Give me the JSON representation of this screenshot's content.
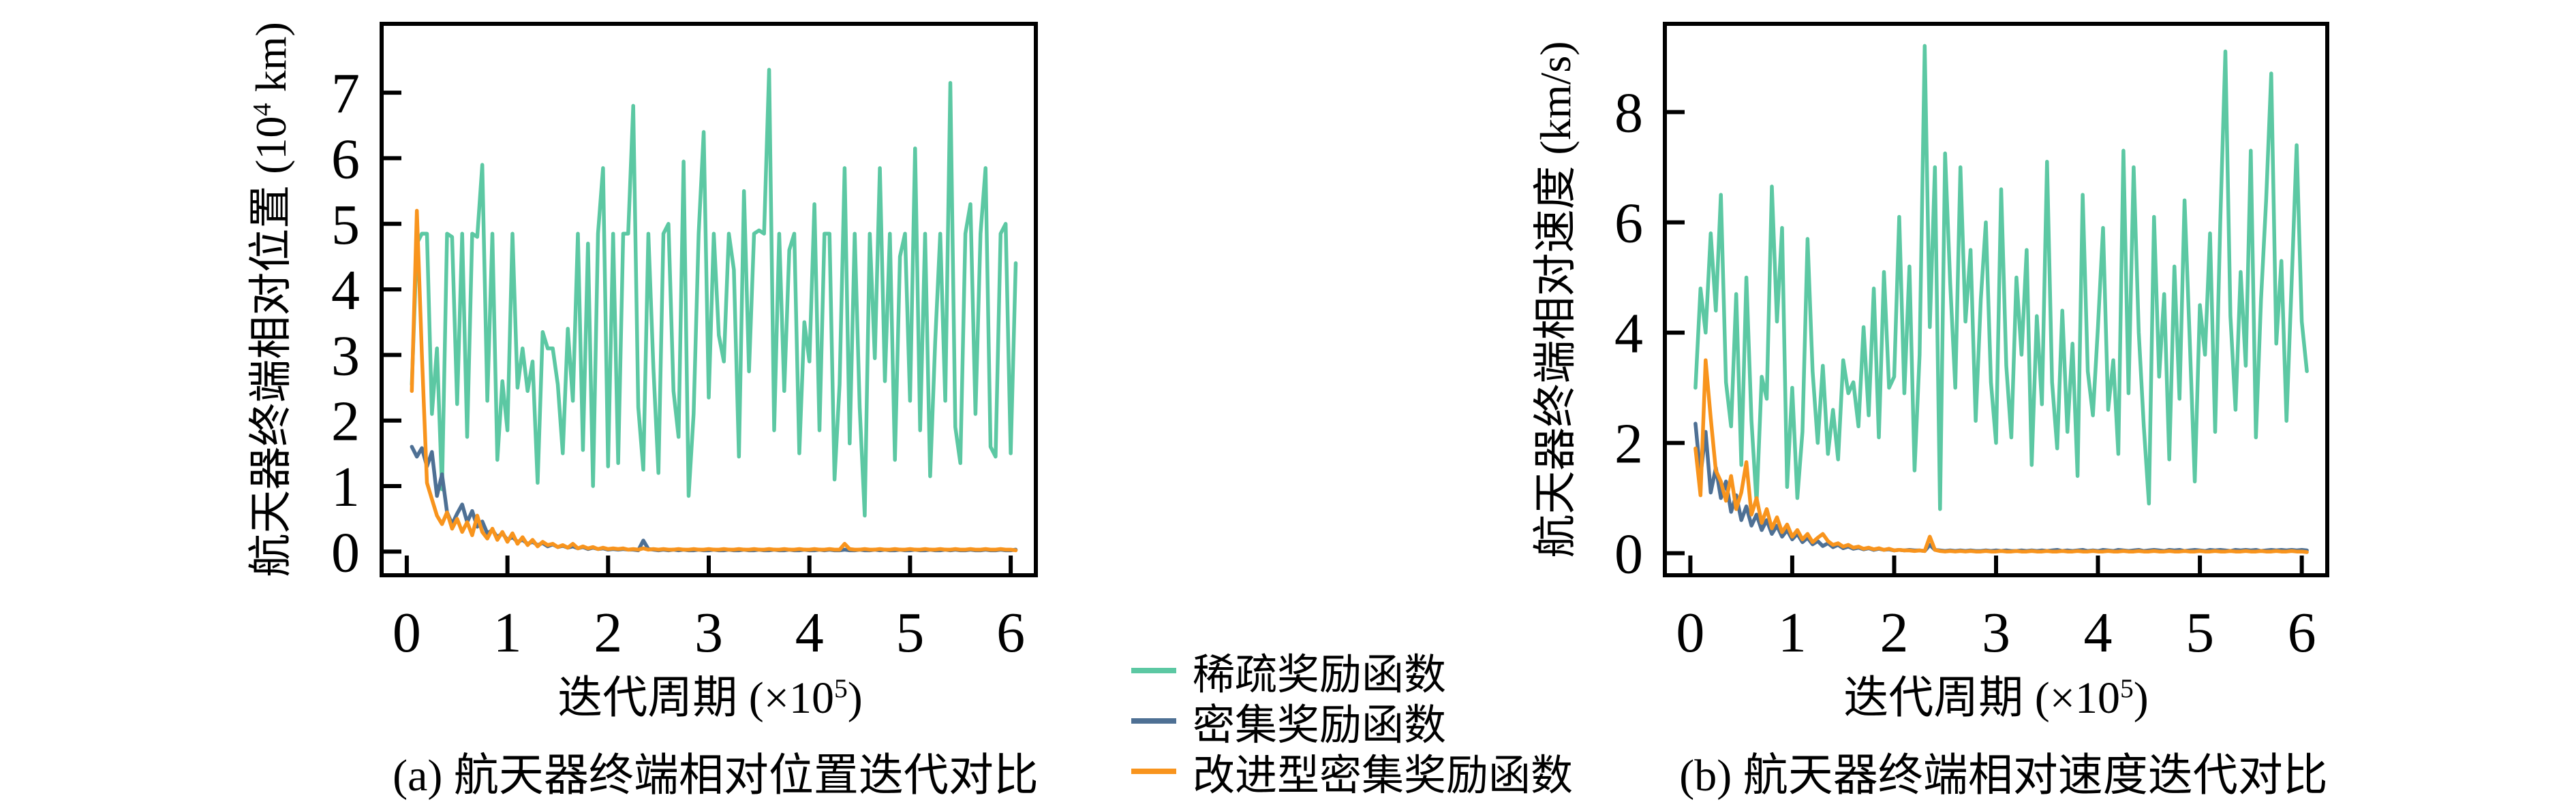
{
  "legend": {
    "items": [
      {
        "key": "sparse",
        "label": "稀疏奖励函数",
        "color": "#5CC8A3"
      },
      {
        "key": "dense",
        "label": "密集奖励函数",
        "color": "#4E7094"
      },
      {
        "key": "improved",
        "label": "改进型密集奖励函数",
        "color": "#F8941D"
      }
    ]
  },
  "axis_color": "#000000",
  "chart_data": [
    {
      "type": "line",
      "caption": "(a) 航天器终端相对位置迭代对比",
      "xlabel": "迭代周期 (×10⁵)",
      "xlabel_base": "迭代周期 (×10",
      "xlabel_sup": "5",
      "xlabel_tail": ")",
      "ylabel": "航天器终端相对位置 (10⁴ km)",
      "ylabel_base": "航天器终端相对位置 (10",
      "ylabel_sup": "4",
      "ylabel_tail": " km)",
      "x_ticks": [
        0,
        1,
        2,
        3,
        4,
        5,
        6
      ],
      "y_ticks": [
        0,
        1,
        2,
        3,
        4,
        5,
        6,
        7
      ],
      "xlim": [
        -0.25,
        6.25
      ],
      "ylim": [
        -0.36,
        8.05
      ],
      "grid": false,
      "legend_position": "figure-bottom-center",
      "x_start": 0.05,
      "x_step": 0.05,
      "series": [
        {
          "key": "sparse",
          "name": "稀疏奖励函数",
          "color": "#5CC8A3",
          "values": [
            2.55,
            4.7,
            4.85,
            4.85,
            2.1,
            3.1,
            0.95,
            4.85,
            4.8,
            2.25,
            4.85,
            1.75,
            4.85,
            4.8,
            5.9,
            2.3,
            4.85,
            1.4,
            2.6,
            1.85,
            4.85,
            2.5,
            3.1,
            2.45,
            2.9,
            1.05,
            3.35,
            3.1,
            3.1,
            2.55,
            1.5,
            3.4,
            2.3,
            4.85,
            1.55,
            4.7,
            1.0,
            4.85,
            5.85,
            1.3,
            4.85,
            1.35,
            4.85,
            4.85,
            6.8,
            2.2,
            1.25,
            4.85,
            2.8,
            1.2,
            4.85,
            5.0,
            2.45,
            1.75,
            5.95,
            0.85,
            2.1,
            4.85,
            6.4,
            2.35,
            4.85,
            3.3,
            2.9,
            4.85,
            4.3,
            1.45,
            5.5,
            2.75,
            4.85,
            4.9,
            4.85,
            7.35,
            1.85,
            4.85,
            2.45,
            4.6,
            4.85,
            1.5,
            3.5,
            2.9,
            5.3,
            1.85,
            4.85,
            4.85,
            1.1,
            2.55,
            5.85,
            1.65,
            4.85,
            2.2,
            0.55,
            4.85,
            2.95,
            5.85,
            2.6,
            4.85,
            1.4,
            4.5,
            4.85,
            2.3,
            6.15,
            1.85,
            4.85,
            1.15,
            3.2,
            4.85,
            2.3,
            7.15,
            1.9,
            1.35,
            4.85,
            5.3,
            2.1,
            4.85,
            5.85,
            1.6,
            1.45,
            4.85,
            5.0,
            1.5,
            4.4
          ]
        },
        {
          "key": "dense",
          "name": "密集奖励函数",
          "color": "#4E7094",
          "values": [
            1.6,
            1.45,
            1.58,
            1.3,
            1.52,
            0.85,
            1.18,
            0.6,
            0.42,
            0.58,
            0.72,
            0.45,
            0.62,
            0.38,
            0.46,
            0.28,
            0.33,
            0.22,
            0.28,
            0.18,
            0.22,
            0.15,
            0.18,
            0.12,
            0.15,
            0.1,
            0.13,
            0.08,
            0.11,
            0.07,
            0.09,
            0.06,
            0.08,
            0.05,
            0.07,
            0.04,
            0.06,
            0.04,
            0.05,
            0.03,
            0.04,
            0.03,
            0.04,
            0.03,
            0.03,
            0.02,
            0.17,
            0.04,
            0.03,
            0.02,
            0.03,
            0.02,
            0.03,
            0.02,
            0.03,
            0.02,
            0.02,
            0.03,
            0.02,
            0.02,
            0.03,
            0.02,
            0.02,
            0.03,
            0.02,
            0.02,
            0.03,
            0.02,
            0.02,
            0.03,
            0.02,
            0.02,
            0.03,
            0.02,
            0.02,
            0.03,
            0.02,
            0.02,
            0.03,
            0.02,
            0.02,
            0.03,
            0.02,
            0.03,
            0.02,
            0.02,
            0.03,
            0.02,
            0.02,
            0.03,
            0.02,
            0.02,
            0.03,
            0.02,
            0.03,
            0.02,
            0.02,
            0.03,
            0.02,
            0.02,
            0.03,
            0.02,
            0.02,
            0.03,
            0.02,
            0.02,
            0.03,
            0.02,
            0.03,
            0.02,
            0.02,
            0.03,
            0.02,
            0.02,
            0.03,
            0.02,
            0.02,
            0.03,
            0.02,
            0.02,
            0.03
          ]
        },
        {
          "key": "improved",
          "name": "改进型密集奖励函数",
          "color": "#F8941D",
          "values": [
            2.45,
            5.2,
            3.0,
            1.05,
            0.8,
            0.55,
            0.42,
            0.6,
            0.35,
            0.5,
            0.3,
            0.45,
            0.25,
            0.55,
            0.3,
            0.2,
            0.35,
            0.18,
            0.3,
            0.15,
            0.28,
            0.12,
            0.22,
            0.1,
            0.18,
            0.08,
            0.15,
            0.1,
            0.12,
            0.07,
            0.1,
            0.06,
            0.12,
            0.05,
            0.08,
            0.05,
            0.07,
            0.04,
            0.06,
            0.04,
            0.05,
            0.04,
            0.05,
            0.03,
            0.04,
            0.03,
            0.05,
            0.03,
            0.04,
            0.03,
            0.04,
            0.03,
            0.03,
            0.04,
            0.03,
            0.03,
            0.04,
            0.03,
            0.03,
            0.04,
            0.03,
            0.03,
            0.04,
            0.03,
            0.03,
            0.04,
            0.03,
            0.03,
            0.04,
            0.03,
            0.03,
            0.04,
            0.03,
            0.03,
            0.04,
            0.03,
            0.03,
            0.04,
            0.03,
            0.03,
            0.04,
            0.03,
            0.03,
            0.04,
            0.03,
            0.03,
            0.12,
            0.04,
            0.03,
            0.03,
            0.04,
            0.03,
            0.03,
            0.04,
            0.03,
            0.03,
            0.04,
            0.03,
            0.03,
            0.04,
            0.03,
            0.03,
            0.04,
            0.03,
            0.03,
            0.04,
            0.03,
            0.03,
            0.04,
            0.03,
            0.03,
            0.04,
            0.03,
            0.03,
            0.04,
            0.03,
            0.03,
            0.04,
            0.03,
            0.03,
            0.02
          ]
        }
      ]
    },
    {
      "type": "line",
      "caption": "(b) 航天器终端相对速度迭代对比",
      "xlabel": "迭代周期 (×10⁵)",
      "xlabel_base": "迭代周期 (×10",
      "xlabel_sup": "5",
      "xlabel_tail": ")",
      "ylabel": "航天器终端相对速度 (km/s)",
      "ylabel_base": "航天器终端相对速度 (km/s)",
      "ylabel_sup": "",
      "ylabel_tail": "",
      "x_ticks": [
        0,
        1,
        2,
        3,
        4,
        5,
        6
      ],
      "y_ticks": [
        0,
        2,
        4,
        6,
        8
      ],
      "xlim": [
        -0.25,
        6.25
      ],
      "ylim": [
        -0.4,
        9.6
      ],
      "grid": false,
      "legend_position": "figure-bottom-center",
      "x_start": 0.05,
      "x_step": 0.05,
      "series": [
        {
          "key": "sparse",
          "name": "稀疏奖励函数",
          "color": "#5CC8A3",
          "values": [
            3.0,
            4.8,
            4.0,
            5.8,
            4.4,
            6.5,
            3.1,
            2.3,
            4.7,
            1.6,
            5.0,
            2.4,
            0.9,
            3.2,
            2.8,
            6.65,
            4.2,
            5.9,
            1.2,
            3.0,
            1.0,
            2.2,
            5.7,
            3.3,
            2.0,
            3.4,
            1.8,
            2.6,
            1.7,
            3.5,
            2.9,
            3.1,
            2.3,
            4.1,
            2.5,
            4.8,
            2.1,
            5.1,
            3.0,
            3.2,
            6.1,
            2.9,
            5.2,
            1.5,
            3.6,
            9.2,
            4.1,
            7.0,
            0.8,
            7.25,
            4.9,
            3.0,
            7.0,
            4.2,
            5.5,
            2.4,
            4.6,
            6.0,
            3.1,
            2.0,
            6.6,
            3.4,
            2.1,
            5.0,
            3.6,
            5.5,
            1.6,
            4.3,
            2.7,
            7.1,
            3.1,
            1.9,
            4.4,
            2.2,
            3.8,
            1.4,
            6.5,
            3.3,
            2.5,
            4.1,
            5.9,
            2.6,
            3.5,
            1.8,
            7.3,
            2.9,
            7.0,
            4.0,
            2.3,
            0.9,
            6.1,
            3.2,
            4.7,
            1.7,
            5.2,
            2.8,
            6.4,
            3.9,
            1.3,
            4.5,
            3.6,
            5.8,
            2.2,
            6.0,
            9.1,
            4.3,
            2.6,
            5.1,
            3.4,
            7.3,
            2.1,
            4.6,
            6.4,
            8.7,
            3.8,
            5.3,
            2.4,
            4.9,
            7.4,
            4.2,
            3.3
          ]
        },
        {
          "key": "dense",
          "name": "密集奖励函数",
          "color": "#4E7094",
          "values": [
            2.35,
            1.4,
            2.2,
            1.1,
            1.55,
            1.0,
            1.3,
            0.75,
            1.05,
            0.6,
            0.85,
            0.5,
            0.7,
            0.42,
            0.6,
            0.35,
            0.5,
            0.3,
            0.42,
            0.25,
            0.35,
            0.2,
            0.28,
            0.16,
            0.22,
            0.13,
            0.18,
            0.11,
            0.15,
            0.09,
            0.12,
            0.08,
            0.1,
            0.07,
            0.09,
            0.06,
            0.08,
            0.06,
            0.07,
            0.05,
            0.06,
            0.05,
            0.06,
            0.05,
            0.05,
            0.04,
            0.15,
            0.06,
            0.05,
            0.04,
            0.05,
            0.04,
            0.05,
            0.04,
            0.05,
            0.04,
            0.04,
            0.05,
            0.04,
            0.05,
            0.04,
            0.05,
            0.04,
            0.04,
            0.05,
            0.04,
            0.05,
            0.04,
            0.05,
            0.04,
            0.05,
            0.06,
            0.04,
            0.05,
            0.04,
            0.05,
            0.06,
            0.04,
            0.05,
            0.04,
            0.06,
            0.05,
            0.04,
            0.06,
            0.05,
            0.04,
            0.05,
            0.06,
            0.04,
            0.05,
            0.06,
            0.05,
            0.04,
            0.06,
            0.05,
            0.06,
            0.04,
            0.05,
            0.06,
            0.05,
            0.04,
            0.06,
            0.05,
            0.06,
            0.05,
            0.04,
            0.06,
            0.05,
            0.06,
            0.05,
            0.06,
            0.04,
            0.05,
            0.06,
            0.05,
            0.06,
            0.05,
            0.06,
            0.05,
            0.06,
            0.05
          ]
        },
        {
          "key": "improved",
          "name": "改进型密集奖励函数",
          "color": "#F8941D",
          "values": [
            1.9,
            1.05,
            3.5,
            2.45,
            1.5,
            1.3,
            0.95,
            1.4,
            0.8,
            1.1,
            1.65,
            0.7,
            1.0,
            0.55,
            0.8,
            0.45,
            0.65,
            0.38,
            0.52,
            0.3,
            0.42,
            0.25,
            0.35,
            0.2,
            0.28,
            0.35,
            0.22,
            0.15,
            0.18,
            0.12,
            0.15,
            0.1,
            0.12,
            0.08,
            0.1,
            0.07,
            0.09,
            0.06,
            0.08,
            0.05,
            0.06,
            0.05,
            0.05,
            0.04,
            0.05,
            0.04,
            0.3,
            0.06,
            0.04,
            0.03,
            0.04,
            0.03,
            0.04,
            0.03,
            0.04,
            0.03,
            0.03,
            0.04,
            0.03,
            0.03,
            0.04,
            0.03,
            0.03,
            0.04,
            0.03,
            0.03,
            0.04,
            0.03,
            0.03,
            0.04,
            0.03,
            0.03,
            0.04,
            0.03,
            0.03,
            0.04,
            0.03,
            0.03,
            0.04,
            0.03,
            0.03,
            0.04,
            0.03,
            0.03,
            0.04,
            0.03,
            0.03,
            0.04,
            0.03,
            0.03,
            0.04,
            0.03,
            0.03,
            0.04,
            0.03,
            0.03,
            0.04,
            0.03,
            0.03,
            0.04,
            0.03,
            0.03,
            0.04,
            0.03,
            0.03,
            0.04,
            0.03,
            0.03,
            0.04,
            0.03,
            0.03,
            0.04,
            0.03,
            0.03,
            0.04,
            0.03,
            0.03,
            0.04,
            0.03,
            0.03,
            0.02
          ]
        }
      ]
    }
  ]
}
